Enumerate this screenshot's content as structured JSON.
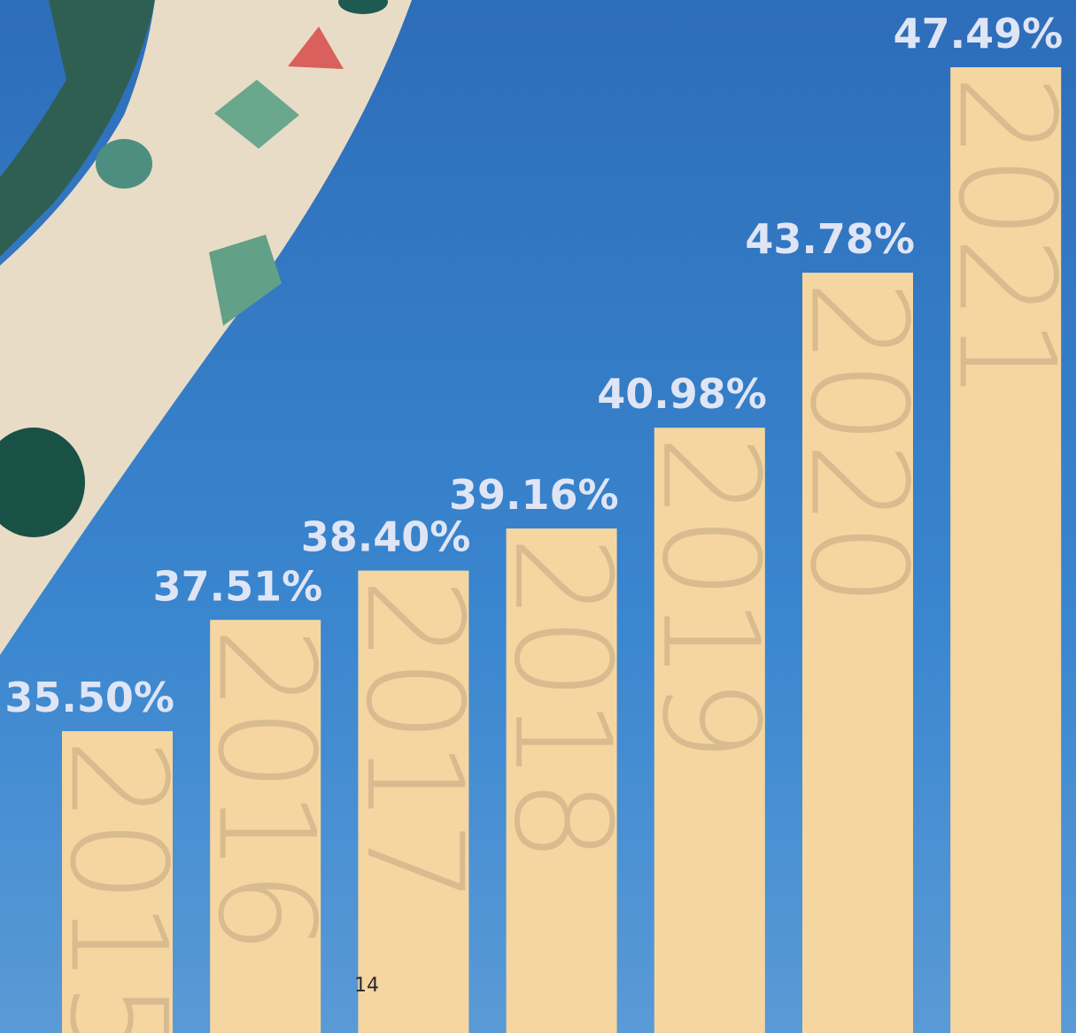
{
  "chart_data": {
    "type": "bar",
    "categories": [
      "2015",
      "2016",
      "2017",
      "2018",
      "2019",
      "2020",
      "2021"
    ],
    "values": [
      35.5,
      37.51,
      38.4,
      39.16,
      40.98,
      43.78,
      47.49
    ],
    "value_labels": [
      "35.50%",
      "37.51%",
      "38.40%",
      "39.16%",
      "40.98%",
      "43.78%",
      "47.49%"
    ],
    "color": "#f5d6a0"
  },
  "page_number": "14"
}
